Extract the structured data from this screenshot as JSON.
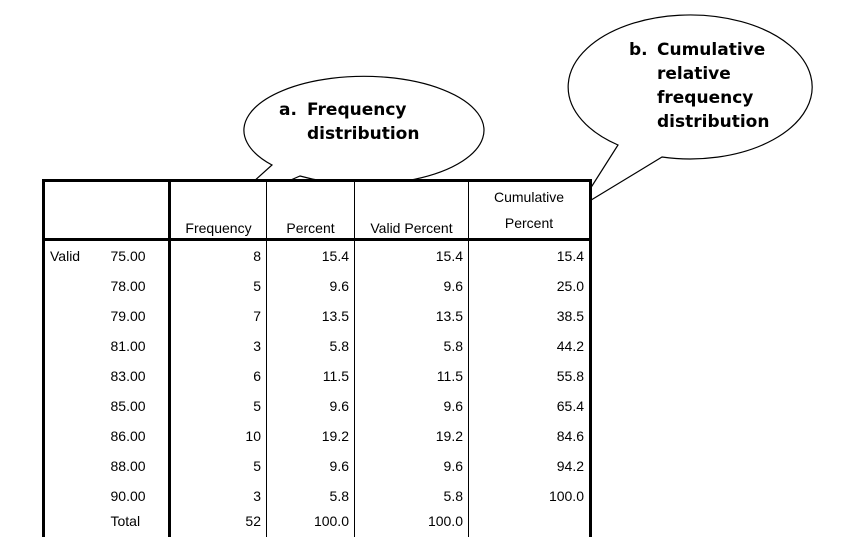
{
  "callouts": {
    "a": {
      "letter": "a.",
      "lines": [
        "Frequency",
        "distribution"
      ]
    },
    "b": {
      "letter": "b.",
      "lines": [
        "Cumulative",
        "relative",
        "frequency",
        "distribution"
      ]
    }
  },
  "table": {
    "headers": {
      "frequency": "Frequency",
      "percent": "Percent",
      "valid_percent": "Valid Percent",
      "cumulative_line1": "Cumulative",
      "cumulative_line2": "Percent"
    },
    "group_label": "Valid",
    "rows": [
      {
        "value": "75.00",
        "frequency": "8",
        "percent": "15.4",
        "valid_percent": "15.4",
        "cumulative_percent": "15.4"
      },
      {
        "value": "78.00",
        "frequency": "5",
        "percent": "9.6",
        "valid_percent": "9.6",
        "cumulative_percent": "25.0"
      },
      {
        "value": "79.00",
        "frequency": "7",
        "percent": "13.5",
        "valid_percent": "13.5",
        "cumulative_percent": "38.5"
      },
      {
        "value": "81.00",
        "frequency": "3",
        "percent": "5.8",
        "valid_percent": "5.8",
        "cumulative_percent": "44.2"
      },
      {
        "value": "83.00",
        "frequency": "6",
        "percent": "11.5",
        "valid_percent": "11.5",
        "cumulative_percent": "55.8"
      },
      {
        "value": "85.00",
        "frequency": "5",
        "percent": "9.6",
        "valid_percent": "9.6",
        "cumulative_percent": "65.4"
      },
      {
        "value": "86.00",
        "frequency": "10",
        "percent": "19.2",
        "valid_percent": "19.2",
        "cumulative_percent": "84.6"
      },
      {
        "value": "88.00",
        "frequency": "5",
        "percent": "9.6",
        "valid_percent": "9.6",
        "cumulative_percent": "94.2"
      },
      {
        "value": "90.00",
        "frequency": "3",
        "percent": "5.8",
        "valid_percent": "5.8",
        "cumulative_percent": "100.0"
      }
    ],
    "total": {
      "value": "Total",
      "frequency": "52",
      "percent": "100.0",
      "valid_percent": "100.0",
      "cumulative_percent": ""
    }
  }
}
